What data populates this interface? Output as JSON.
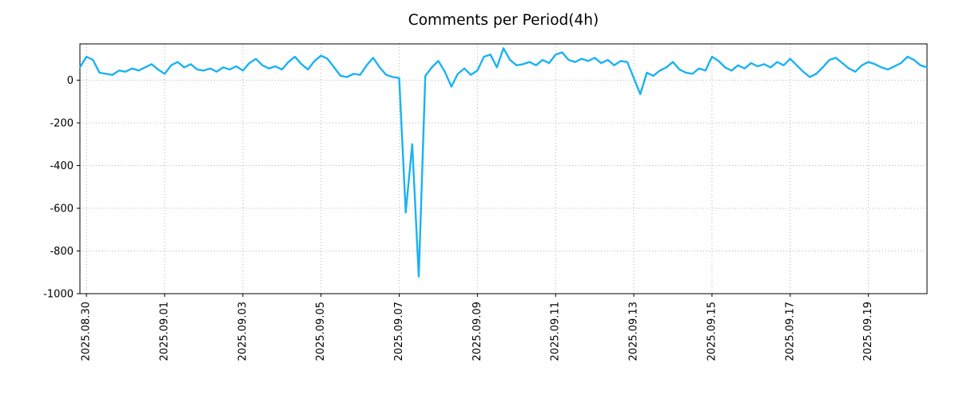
{
  "chart_data": {
    "type": "line",
    "title": "Comments per Period(4h)",
    "series_name": "comments",
    "xlabel": "",
    "ylabel": "",
    "start_time": "2025-08-29 20:00",
    "interval_hours": 4,
    "values": [
      60,
      110,
      95,
      35,
      30,
      25,
      45,
      40,
      55,
      45,
      60,
      75,
      50,
      30,
      70,
      85,
      60,
      75,
      50,
      45,
      55,
      40,
      60,
      50,
      65,
      45,
      80,
      100,
      70,
      55,
      65,
      50,
      85,
      110,
      75,
      50,
      90,
      115,
      100,
      60,
      20,
      15,
      30,
      25,
      70,
      105,
      60,
      25,
      15,
      10,
      -620,
      -300,
      -920,
      20,
      60,
      90,
      40,
      -30,
      30,
      55,
      25,
      45,
      110,
      120,
      60,
      150,
      95,
      70,
      75,
      85,
      70,
      95,
      80,
      120,
      130,
      95,
      85,
      100,
      90,
      105,
      80,
      95,
      70,
      90,
      85,
      10,
      -65,
      35,
      20,
      45,
      60,
      85,
      50,
      35,
      30,
      55,
      45,
      110,
      90,
      60,
      45,
      70,
      55,
      80,
      65,
      75,
      60,
      85,
      70,
      100,
      70,
      40,
      15,
      30,
      60,
      95,
      105,
      80,
      55,
      40,
      70,
      85,
      75,
      60,
      50,
      65,
      80,
      110,
      95,
      70,
      60
    ],
    "x_tick_labels": [
      "2025.08.30",
      "2025.09.01",
      "2025.09.03",
      "2025.09.05",
      "2025.09.07",
      "2025.09.09",
      "2025.09.11",
      "2025.09.13",
      "2025.09.15",
      "2025.09.17",
      "2025.09.19"
    ],
    "x_tick_indices": [
      1,
      13,
      25,
      37,
      49,
      61,
      73,
      85,
      97,
      109,
      121
    ],
    "y_ticks": [
      0,
      -200,
      -400,
      -600,
      -800,
      -1000
    ],
    "ylim": [
      -1000,
      170
    ],
    "grid": true,
    "legend": "none",
    "line_color": "#1cb2f2",
    "grid_color": "#b3b3b3",
    "axis_color": "#000000"
  }
}
